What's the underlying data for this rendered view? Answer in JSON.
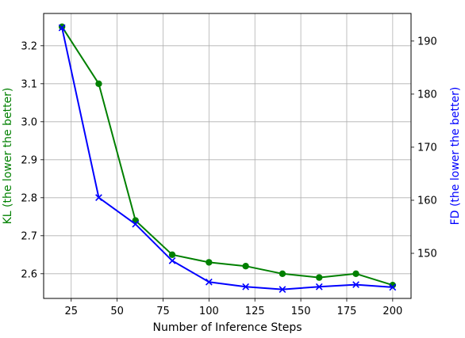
{
  "chart_data": {
    "type": "line",
    "xlabel": "Number of Inference Steps",
    "ylabel_left": "KL (the lower the better)",
    "ylabel_right": "FD (the lower the better)",
    "grid": true,
    "x": [
      20,
      40,
      60,
      80,
      100,
      120,
      140,
      160,
      180,
      200
    ],
    "xlim": [
      10,
      210
    ],
    "x_ticks": [
      25,
      50,
      75,
      100,
      125,
      150,
      175,
      200
    ],
    "series": [
      {
        "axis": "left",
        "color": "#008000",
        "marker": "circle",
        "values": [
          3.25,
          3.1,
          2.74,
          2.65,
          2.63,
          2.62,
          2.6,
          2.59,
          2.6,
          2.57
        ]
      },
      {
        "axis": "right",
        "color": "#0000ff",
        "marker": "x",
        "values": [
          192.5,
          160.5,
          155.5,
          148.6,
          144.6,
          143.7,
          143.2,
          143.7,
          144.1,
          143.6
        ]
      }
    ],
    "ylim_left": [
      2.535,
      3.285
    ],
    "y_ticks_left": [
      2.6,
      2.7,
      2.8,
      2.9,
      3.0,
      3.1,
      3.2
    ],
    "ylim_right": [
      141.5,
      195.2
    ],
    "y_ticks_right": [
      150,
      160,
      170,
      180,
      190
    ],
    "colors": {
      "left_axis_label": "#008000",
      "right_axis_label": "#0000ff",
      "grid": "#b0b0b0"
    }
  }
}
